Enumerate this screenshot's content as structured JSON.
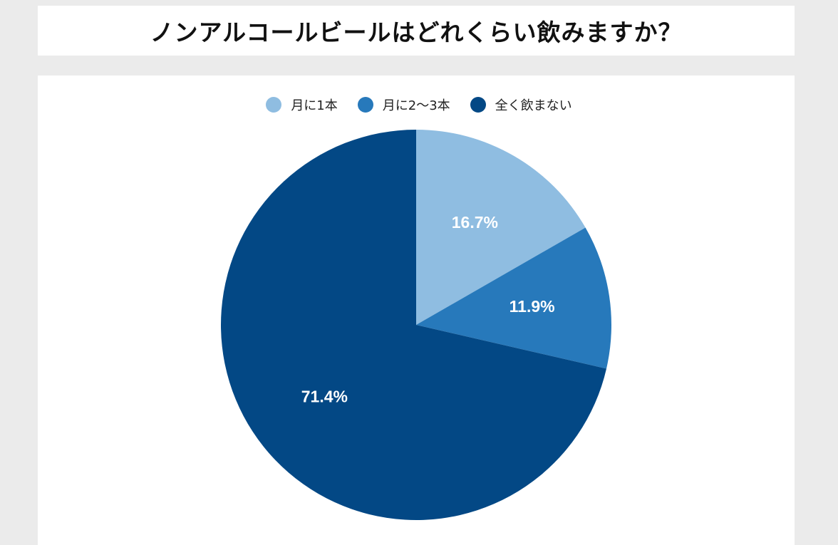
{
  "title": "ノンアルコールビールはどれくらい飲みますか？",
  "chart_data": {
    "type": "pie",
    "title": "ノンアルコールビールはどれくらい飲みますか？",
    "legend_position": "top-center",
    "categories": [
      "月に1本",
      "月に2〜3本",
      "全く飲まない"
    ],
    "values": [
      16.7,
      11.9,
      71.4
    ],
    "labels": [
      "16.7%",
      "11.9%",
      "71.4%"
    ],
    "colors": [
      "#8fbde1",
      "#2779bb",
      "#034885"
    ],
    "unit": "%"
  }
}
